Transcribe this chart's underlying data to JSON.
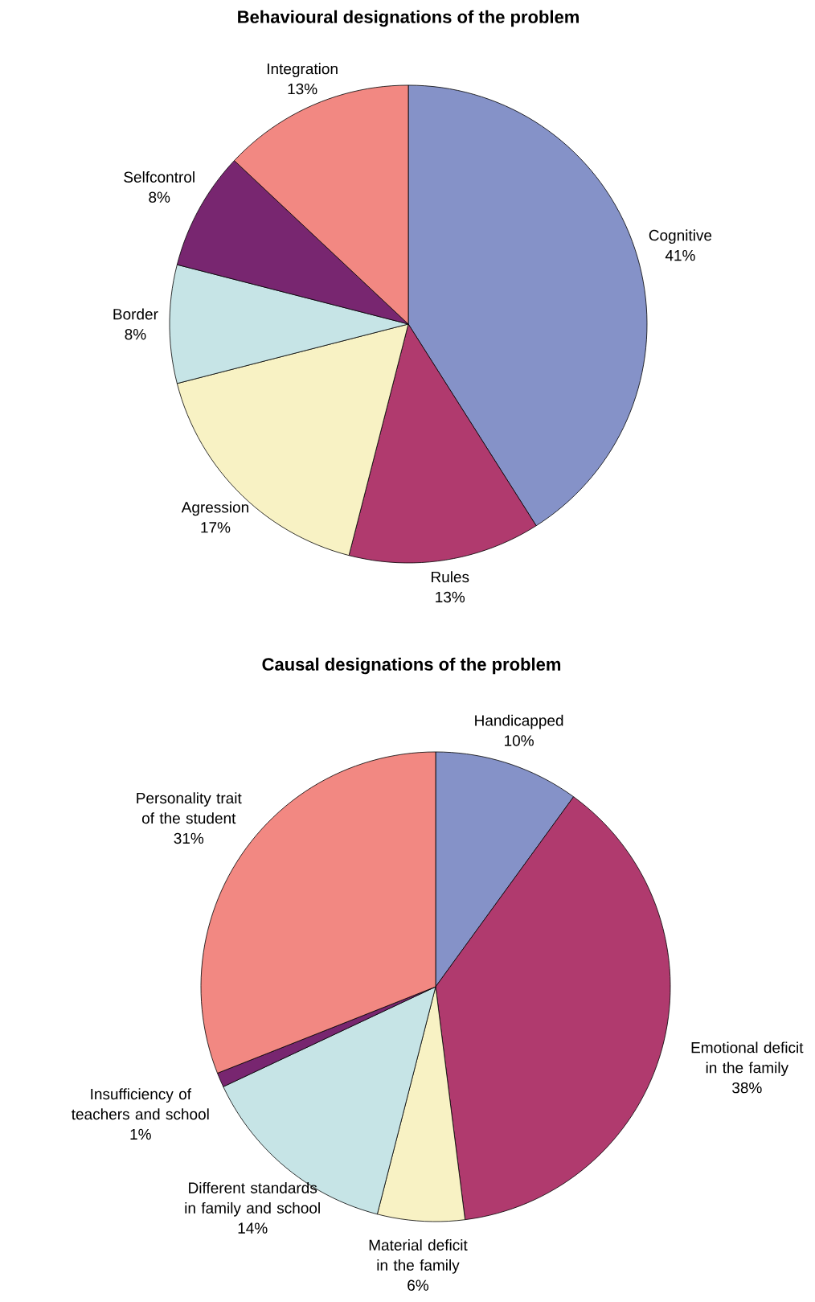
{
  "chart_data": [
    {
      "type": "pie",
      "title": "Behavioural designations of the problem",
      "categories": [
        "Cognitive",
        "Rules",
        "Agression",
        "Border",
        "Selfcontrol",
        "Integration"
      ],
      "values": [
        41,
        13,
        17,
        8,
        8,
        13
      ],
      "value_labels": [
        "41%",
        "13%",
        "17%",
        "8%",
        "8%",
        "13%"
      ],
      "colors": [
        "#8592c8",
        "#b03a6e",
        "#f8f2c4",
        "#c6e4e6",
        "#782670",
        "#f28882"
      ]
    },
    {
      "type": "pie",
      "title": "Causal designations of the problem",
      "categories": [
        "Handicapped",
        "Emotional deficit in the family",
        "Material deficit in the family",
        "Different standards in family and school",
        "Insufficiency of teachers and school",
        "Personality trait of the student"
      ],
      "values": [
        10,
        38,
        6,
        14,
        1,
        31
      ],
      "value_labels": [
        "10%",
        "38%",
        "6%",
        "14%",
        "1%",
        "31%"
      ],
      "colors": [
        "#8592c8",
        "#b03a6e",
        "#f8f2c4",
        "#c6e4e6",
        "#782670",
        "#f28882"
      ]
    }
  ]
}
